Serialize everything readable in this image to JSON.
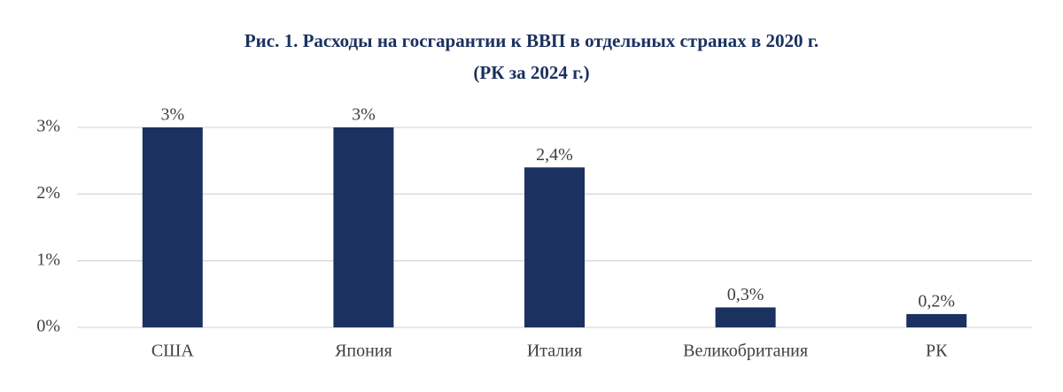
{
  "chart_data": {
    "type": "bar",
    "title": [
      "Рис. 1. Расходы на госгарантии к ВВП в отдельных странах в 2020 г.",
      "(РК за 2024 г.)"
    ],
    "categories": [
      "США",
      "Япония",
      "Италия",
      "Великобритания",
      "РК"
    ],
    "values": [
      3,
      3,
      2.4,
      0.3,
      0.2
    ],
    "value_labels": [
      "3%",
      "3%",
      "2,4%",
      "0,3%",
      "0,2%"
    ],
    "color": "#1b3160",
    "ylim": [
      0,
      3
    ],
    "yticks": [
      {
        "value": 0,
        "label": "0%"
      },
      {
        "value": 1,
        "label": "1%"
      },
      {
        "value": 2,
        "label": "2%"
      },
      {
        "value": 3,
        "label": "3%"
      }
    ],
    "grid": true
  }
}
